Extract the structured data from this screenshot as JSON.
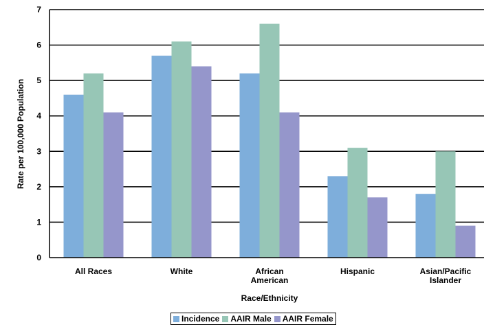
{
  "chart_data": {
    "type": "bar",
    "categories": [
      [
        "All Races"
      ],
      [
        "White"
      ],
      [
        "African",
        "American"
      ],
      [
        "Hispanic"
      ],
      [
        "Asian/Pacific",
        "Islander"
      ]
    ],
    "series": [
      {
        "name": "Incidence",
        "color": "#7EAEDB",
        "values": [
          4.6,
          5.7,
          5.2,
          2.3,
          1.8
        ]
      },
      {
        "name": "AAIR Male",
        "color": "#97C6B6",
        "values": [
          5.2,
          6.1,
          6.6,
          3.1,
          3.0
        ]
      },
      {
        "name": "AAIR Female",
        "color": "#9596CB",
        "values": [
          4.1,
          5.4,
          4.1,
          1.7,
          0.9
        ]
      }
    ],
    "xlabel": "Race/Ethnicity",
    "ylabel": "Rate per 100,000 Population",
    "ylim": [
      0,
      7
    ],
    "yticks": [
      0,
      1,
      2,
      3,
      4,
      5,
      6,
      7
    ],
    "grid": true,
    "legend_position": "bottom"
  }
}
